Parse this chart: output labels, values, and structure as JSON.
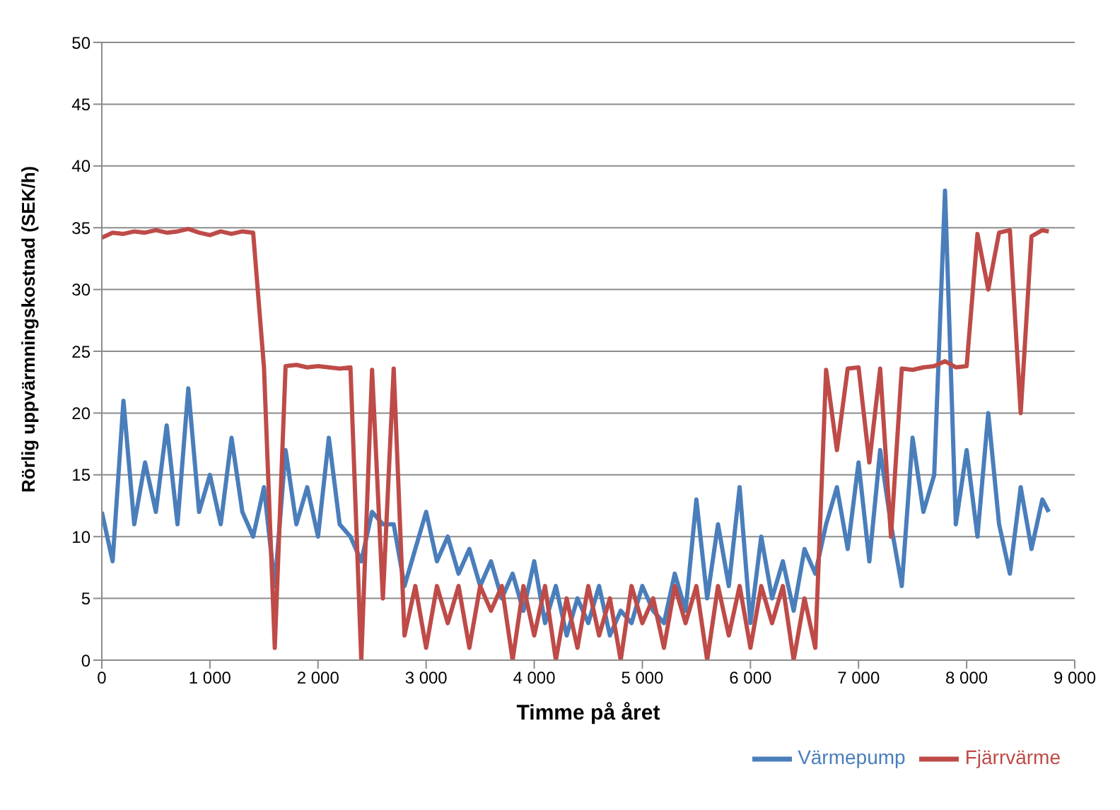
{
  "chart_data": {
    "type": "line",
    "xlabel": "Timme på året",
    "ylabel": "Rörlig uppvärmningskostnad (SEK/h)",
    "x": [
      0,
      100,
      200,
      300,
      400,
      500,
      600,
      700,
      800,
      900,
      1000,
      1100,
      1200,
      1300,
      1400,
      1500,
      1600,
      1700,
      1800,
      1900,
      2000,
      2100,
      2200,
      2300,
      2400,
      2500,
      2600,
      2700,
      2800,
      2900,
      3000,
      3100,
      3200,
      3300,
      3400,
      3500,
      3600,
      3700,
      3800,
      3900,
      4000,
      4100,
      4200,
      4300,
      4400,
      4500,
      4600,
      4700,
      4800,
      4900,
      5000,
      5100,
      5200,
      5300,
      5400,
      5500,
      5600,
      5700,
      5800,
      5900,
      6000,
      6100,
      6200,
      6300,
      6400,
      6500,
      6600,
      6700,
      6800,
      6900,
      7000,
      7100,
      7200,
      7300,
      7400,
      7500,
      7600,
      7700,
      7800,
      7900,
      8000,
      8100,
      8200,
      8300,
      8400,
      8500,
      8600,
      8700,
      8760
    ],
    "series": [
      {
        "name": "Värmepump",
        "color": "#4a7ebb",
        "values": [
          12,
          8,
          21,
          11,
          16,
          12,
          19,
          11,
          22,
          12,
          15,
          11,
          18,
          12,
          10,
          14,
          6,
          17,
          11,
          14,
          10,
          18,
          11,
          10,
          8,
          12,
          11,
          11,
          6,
          9,
          12,
          8,
          10,
          7,
          9,
          6,
          8,
          5,
          7,
          4,
          8,
          3,
          6,
          2,
          5,
          3,
          6,
          2,
          4,
          3,
          6,
          4,
          3,
          7,
          4,
          13,
          5,
          11,
          6,
          14,
          3,
          10,
          5,
          8,
          4,
          9,
          7,
          11,
          14,
          9,
          16,
          8,
          17,
          11,
          6,
          18,
          12,
          15,
          38,
          11,
          17,
          10,
          20,
          11,
          7,
          14,
          9,
          13,
          12
        ]
      },
      {
        "name": "Fjärrvärme",
        "color": "#be4b48",
        "values": [
          34.2,
          34.6,
          34.5,
          34.7,
          34.6,
          34.8,
          34.6,
          34.7,
          34.9,
          34.6,
          34.4,
          34.7,
          34.5,
          34.7,
          34.6,
          23.7,
          1,
          23.8,
          23.9,
          23.7,
          23.8,
          23.7,
          23.6,
          23.7,
          0,
          23.5,
          5,
          23.6,
          2,
          6,
          1,
          6,
          3,
          6,
          1,
          6,
          4,
          6,
          0,
          6,
          2,
          6,
          0,
          5,
          1,
          6,
          2,
          5,
          0,
          6,
          3,
          5,
          1,
          6,
          3,
          6,
          0,
          6,
          2,
          6,
          1,
          6,
          3,
          6,
          0,
          5,
          1,
          23.5,
          17,
          23.6,
          23.7,
          16,
          23.6,
          10,
          23.6,
          23.5,
          23.7,
          23.8,
          24.2,
          23.7,
          23.8,
          34.5,
          30,
          34.6,
          34.8,
          20,
          34.3,
          34.8,
          34.7
        ]
      }
    ],
    "xlim": [
      0,
      9000
    ],
    "xticks": [
      0,
      {
        "value": 1000,
        "label": "1 000"
      },
      {
        "value": 2000,
        "label": "2 000"
      },
      {
        "value": 3000,
        "label": "3 000"
      },
      {
        "value": 4000,
        "label": "4 000"
      },
      {
        "value": 5000,
        "label": "5 000"
      },
      {
        "value": 6000,
        "label": "6 000"
      },
      {
        "value": 7000,
        "label": "7 000"
      },
      {
        "value": 8000,
        "label": "8 000"
      },
      {
        "value": 9000,
        "label": "9 000"
      }
    ],
    "ylim": [
      0,
      50
    ],
    "yticks": [
      0,
      5,
      10,
      15,
      20,
      25,
      30,
      35,
      40,
      45,
      50
    ],
    "grid": "y",
    "legend": "bottom right",
    "marker": "none",
    "line_style": "solid"
  }
}
